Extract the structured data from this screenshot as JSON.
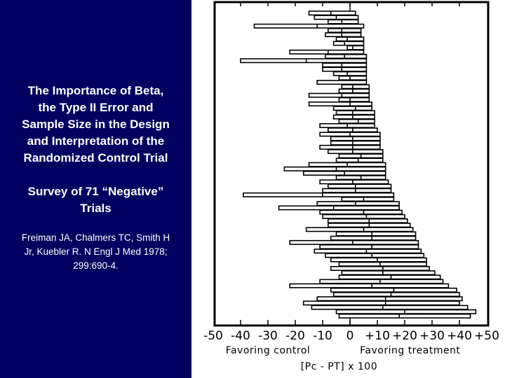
{
  "left_panel": {
    "title": "The Importance of Beta, the Type II Error and Sample Size in the Design and Interpretation of the Randomized Control Trial",
    "title_lines": [
      "The Importance of Beta,",
      "the Type II Error and",
      "Sample Size in the Design",
      "and Interpretation of the",
      "Randomized Control Trial"
    ],
    "subtitle_lines": [
      "Survey of 71 “Negative”",
      "Trials"
    ],
    "citation_lines": [
      "Freiman JA, Chalmers TC, Smith H",
      "Jr, Kuebler R.  N Engl J Med 1978;",
      "299:690-4."
    ],
    "background_color": "#000060",
    "text_color": "#ffffff"
  },
  "chart_data": {
    "type": "interval",
    "title": "Survey of 71 “Negative” Trials",
    "xlabel": "[Pc - PT] x 100",
    "xlabel_left": "Favoring control",
    "xlabel_right": "Favoring treatment",
    "xlim": [
      -50,
      50
    ],
    "x_ticks": [
      -50,
      -40,
      -30,
      -20,
      -10,
      0,
      10,
      20,
      30,
      40,
      50
    ],
    "x_tick_labels": [
      "-50",
      "-40",
      "-30",
      "-20",
      "-10",
      "0",
      "+10",
      "+20",
      "+30",
      "+40",
      "+50"
    ],
    "reference_line": 0,
    "n_trials": 71,
    "intervals": [
      {
        "lo": -15,
        "pt": -7,
        "hi": 2
      },
      {
        "lo": -13,
        "pt": -5,
        "hi": 3
      },
      {
        "lo": -8,
        "pt": -3,
        "hi": 3
      },
      {
        "lo": -35,
        "pt": -12,
        "hi": 5
      },
      {
        "lo": -8,
        "pt": -3,
        "hi": 4
      },
      {
        "lo": -9,
        "pt": -3,
        "hi": 4
      },
      {
        "lo": -5,
        "pt": -1,
        "hi": 5
      },
      {
        "lo": -6,
        "pt": -2,
        "hi": 5
      },
      {
        "lo": -1,
        "pt": 1,
        "hi": 5
      },
      {
        "lo": -22,
        "pt": -8,
        "hi": 5
      },
      {
        "lo": -9,
        "pt": -2,
        "hi": 6
      },
      {
        "lo": -40,
        "pt": -16,
        "hi": 6
      },
      {
        "lo": -10,
        "pt": -3,
        "hi": 6
      },
      {
        "lo": -10,
        "pt": -3,
        "hi": 6
      },
      {
        "lo": -6,
        "pt": -1,
        "hi": 6
      },
      {
        "lo": -4,
        "pt": 0,
        "hi": 6
      },
      {
        "lo": -12,
        "pt": -12,
        "hi": 6
      },
      {
        "lo": -3,
        "pt": 1,
        "hi": 7
      },
      {
        "lo": -4,
        "pt": 1,
        "hi": 7
      },
      {
        "lo": -15,
        "pt": -3,
        "hi": 7
      },
      {
        "lo": -4,
        "pt": 0,
        "hi": 7
      },
      {
        "lo": -15,
        "pt": 0,
        "hi": 8
      },
      {
        "lo": -6,
        "pt": 2,
        "hi": 8
      },
      {
        "lo": -5,
        "pt": 1,
        "hi": 9
      },
      {
        "lo": -6,
        "pt": 1,
        "hi": 9
      },
      {
        "lo": -4,
        "pt": 3,
        "hi": 9
      },
      {
        "lo": -11,
        "pt": -1,
        "hi": 9
      },
      {
        "lo": -8,
        "pt": 1,
        "hi": 10
      },
      {
        "lo": -11,
        "pt": 0,
        "hi": 11
      },
      {
        "lo": -7,
        "pt": 1,
        "hi": 11
      },
      {
        "lo": -7,
        "pt": 1,
        "hi": 11
      },
      {
        "lo": -11,
        "pt": 1,
        "hi": 11
      },
      {
        "lo": -8,
        "pt": 1,
        "hi": 12
      },
      {
        "lo": -4,
        "pt": 4,
        "hi": 12
      },
      {
        "lo": -5,
        "pt": 3,
        "hi": 12
      },
      {
        "lo": -15,
        "pt": -1,
        "hi": 13
      },
      {
        "lo": -24,
        "pt": -5,
        "hi": 13
      },
      {
        "lo": -17,
        "pt": -2,
        "hi": 13
      },
      {
        "lo": -5,
        "pt": 4,
        "hi": 13
      },
      {
        "lo": -11,
        "pt": 1,
        "hi": 14
      },
      {
        "lo": -8,
        "pt": 2,
        "hi": 15
      },
      {
        "lo": -10,
        "pt": 2,
        "hi": 15
      },
      {
        "lo": -39,
        "pt": -10,
        "hi": 16
      },
      {
        "lo": -3,
        "pt": 5,
        "hi": 16
      },
      {
        "lo": -12,
        "pt": 2,
        "hi": 18
      },
      {
        "lo": -26,
        "pt": -6,
        "hi": 18
      },
      {
        "lo": -11,
        "pt": 5,
        "hi": 19
      },
      {
        "lo": -10,
        "pt": 6,
        "hi": 20
      },
      {
        "lo": -8,
        "pt": 7,
        "hi": 21
      },
      {
        "lo": -8,
        "pt": 7,
        "hi": 22
      },
      {
        "lo": -16,
        "pt": 5,
        "hi": 23
      },
      {
        "lo": -5,
        "pt": 8,
        "hi": 24
      },
      {
        "lo": -7,
        "pt": 8,
        "hi": 24
      },
      {
        "lo": -22,
        "pt": 1,
        "hi": 25
      },
      {
        "lo": -11,
        "pt": 8,
        "hi": 25
      },
      {
        "lo": -13,
        "pt": 6,
        "hi": 26
      },
      {
        "lo": -9,
        "pt": 8,
        "hi": 27
      },
      {
        "lo": -7,
        "pt": 10,
        "hi": 28
      },
      {
        "lo": -4,
        "pt": 11,
        "hi": 28
      },
      {
        "lo": -7,
        "pt": 12,
        "hi": 29
      },
      {
        "lo": -3,
        "pt": 12,
        "hi": 31
      },
      {
        "lo": -4,
        "pt": 15,
        "hi": 33
      },
      {
        "lo": -11,
        "pt": 11,
        "hi": 34
      },
      {
        "lo": -22,
        "pt": 8,
        "hi": 36
      },
      {
        "lo": -7,
        "pt": 16,
        "hi": 39
      },
      {
        "lo": -6,
        "pt": 15,
        "hi": 40
      },
      {
        "lo": -12,
        "pt": 13,
        "hi": 41
      },
      {
        "lo": -17,
        "pt": 13,
        "hi": 40
      },
      {
        "lo": -14,
        "pt": 12,
        "hi": 43
      },
      {
        "lo": -5,
        "pt": 20,
        "hi": 46
      },
      {
        "lo": -4,
        "pt": 18,
        "hi": 44
      }
    ]
  }
}
